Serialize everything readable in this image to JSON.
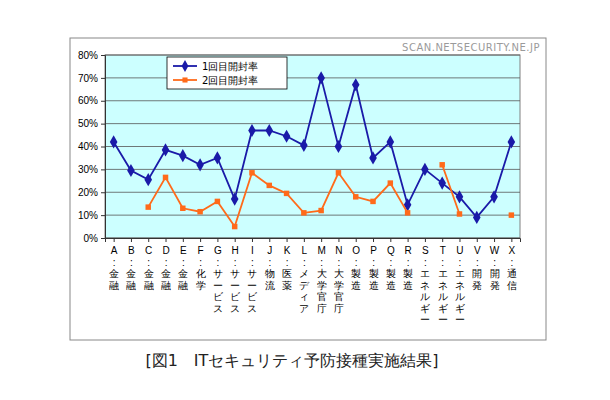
{
  "chart_data": {
    "type": "line",
    "title": "[図1　ITセキュリティ予防接種実施結果]",
    "annotations": [
      "SCAN.NETSECURITY.NE.JP"
    ],
    "categories": [
      "A:金融",
      "B:金融",
      "C:金融",
      "D:金融",
      "E:金融",
      "F:化学",
      "G:サービス",
      "H:サービス",
      "I:サービス",
      "J:物流",
      "K:医薬",
      "L:メディア",
      "M:大学官庁",
      "N:大学官庁",
      "O:製造",
      "P:製造",
      "Q:製造",
      "R:製造",
      "S:エネルギー",
      "T:エネルギー",
      "U:エネルギー",
      "V:開発",
      "W:開発",
      "X:通信"
    ],
    "series": [
      {
        "name": "1回目開封率",
        "color": "#1a1aa8",
        "marker": "diamond",
        "values": [
          42,
          29.5,
          25.5,
          38.5,
          36,
          32,
          35,
          17,
          47,
          47,
          44.5,
          40.5,
          70,
          40,
          67,
          35,
          42,
          14.5,
          30,
          24,
          18,
          9,
          18,
          42
        ]
      },
      {
        "name": "2回目開封率",
        "color": "#ff6a1a",
        "marker": "square",
        "values": [
          null,
          null,
          13.5,
          26.5,
          13,
          11.5,
          16,
          5,
          28.5,
          23,
          19.5,
          11,
          12,
          28.5,
          18,
          16,
          24,
          11,
          null,
          32,
          10.5,
          null,
          null,
          10
        ]
      }
    ],
    "ylim": [
      0,
      80
    ],
    "yticks": [
      {
        "value": 0,
        "label": "0%"
      },
      {
        "value": 10,
        "label": "10%"
      },
      {
        "value": 20,
        "label": "20%"
      },
      {
        "value": 30,
        "label": "30%"
      },
      {
        "value": 40,
        "label": "40%"
      },
      {
        "value": 50,
        "label": "50%"
      },
      {
        "value": 60,
        "label": "60%"
      },
      {
        "value": 70,
        "label": "70%"
      },
      {
        "value": 80,
        "label": "80%"
      }
    ],
    "grid": true,
    "legend": "upper left"
  }
}
